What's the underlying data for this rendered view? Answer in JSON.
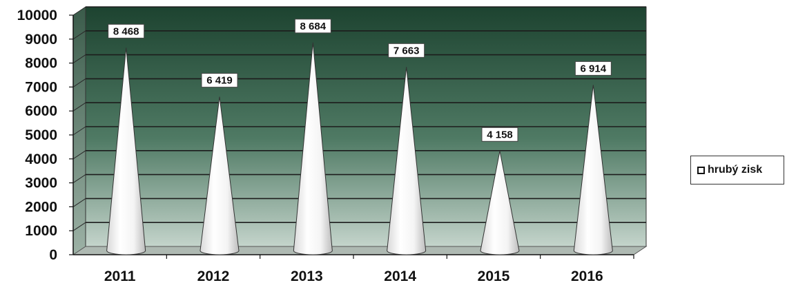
{
  "chart_data": {
    "type": "bar",
    "categories": [
      "2011",
      "2012",
      "2013",
      "2014",
      "2015",
      "2016"
    ],
    "series": [
      {
        "name": "hrubý zisk",
        "values": [
          8468,
          6419,
          8684,
          7663,
          4158,
          6914
        ]
      }
    ],
    "value_labels": [
      "8 468",
      "6 419",
      "8 684",
      "7 663",
      "4 158",
      "6 914"
    ],
    "y_ticks": [
      "0",
      "1000",
      "2000",
      "3000",
      "4000",
      "5000",
      "6000",
      "7000",
      "8000",
      "9000",
      "10000"
    ],
    "ylim": [
      0,
      10000
    ],
    "grid": true,
    "legend_position": "right",
    "mark_shape": "cone",
    "colors": {
      "background_dark": "#24503a",
      "background_light": "#c9d8d0",
      "mark": "#ffffff"
    }
  },
  "legend": {
    "label": "hrubý zisk"
  }
}
